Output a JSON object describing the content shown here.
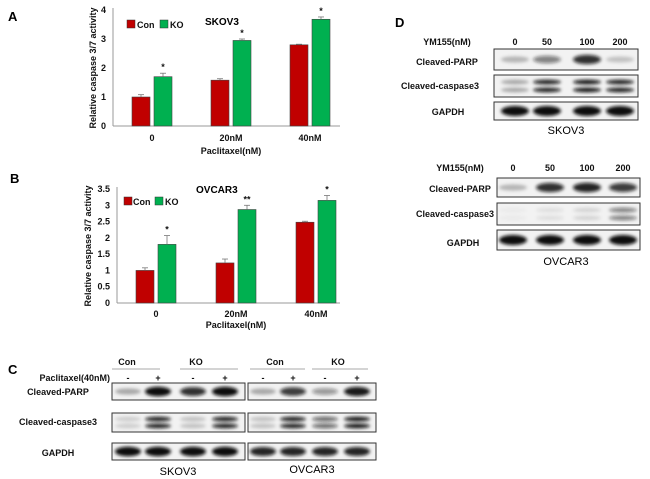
{
  "panels": {
    "a": "A",
    "b": "B",
    "c": "C",
    "d": "D"
  },
  "chart_data": [
    {
      "type": "bar",
      "title": "SKOV3",
      "xlabel": "Paclitaxel(nM)",
      "ylabel": "Relative caspase 3/7 activity",
      "categories": [
        "0",
        "20nM",
        "40nM"
      ],
      "ylim": [
        0,
        4
      ],
      "yticks": [
        "0",
        "1",
        "2",
        "3",
        "4"
      ],
      "series": [
        {
          "name": "Con",
          "color": "#c00000",
          "values": [
            1.0,
            1.58,
            2.8
          ],
          "errors": [
            0.08,
            0.05,
            0.02
          ]
        },
        {
          "name": "KO",
          "color": "#00b050",
          "values": [
            1.7,
            2.95,
            3.68
          ],
          "errors": [
            0.12,
            0.05,
            0.08
          ]
        }
      ],
      "significance": [
        "*",
        "*",
        "*"
      ],
      "legend": "top-left"
    },
    {
      "type": "bar",
      "title": "OVCAR3",
      "xlabel": "Paclitaxel(nM)",
      "ylabel": "Relative caspase 3/7 activity",
      "categories": [
        "0",
        "20nM",
        "40nM"
      ],
      "ylim": [
        0,
        3.5
      ],
      "yticks": [
        "0",
        "0.5",
        "1",
        "1.5",
        "2",
        "2.5",
        "3",
        "3.5"
      ],
      "series": [
        {
          "name": "Con",
          "color": "#c00000",
          "values": [
            1.0,
            1.23,
            2.48
          ],
          "errors": [
            0.08,
            0.12,
            0.03
          ]
        },
        {
          "name": "KO",
          "color": "#00b050",
          "values": [
            1.8,
            2.87,
            3.15
          ],
          "errors": [
            0.27,
            0.13,
            0.15
          ]
        }
      ],
      "significance": [
        "*",
        "**",
        "*"
      ],
      "legend": "top-left"
    }
  ],
  "panel_c": {
    "groups": [
      "Con",
      "KO",
      "Con",
      "KO"
    ],
    "treatment_label": "Paclitaxel(40nM)",
    "treatment_signs": [
      "-",
      "+",
      "-",
      "+",
      "-",
      "+",
      "-",
      "+"
    ],
    "rows": [
      "Cleaved-PARP",
      "Cleaved-caspase3",
      "GAPDH"
    ],
    "cell_lines": [
      "SKOV3",
      "OVCAR3"
    ],
    "band_intensity": {
      "SKOV3": [
        [
          0.3,
          1,
          0.85,
          1
        ],
        [
          0.15,
          0.9,
          0.2,
          0.9
        ],
        [
          1,
          1,
          1,
          1
        ]
      ],
      "OVCAR3": [
        [
          0.3,
          0.8,
          0.4,
          0.95
        ],
        [
          0.2,
          0.9,
          0.6,
          0.95
        ],
        [
          0.9,
          0.9,
          0.9,
          0.9
        ]
      ]
    }
  },
  "panel_d": {
    "dose_label": "YM155(nM)",
    "doses": [
      "0",
      "50",
      "100",
      "200"
    ],
    "rows": [
      "Cleaved-PARP",
      "Cleaved-caspase3",
      "GAPDH"
    ],
    "cell_lines": [
      "SKOV3",
      "OVCAR3"
    ],
    "band_intensity": {
      "SKOV3": [
        [
          0.25,
          0.5,
          0.85,
          0.2
        ],
        [
          0.3,
          0.9,
          0.95,
          0.9
        ],
        [
          1,
          1,
          1,
          1
        ]
      ],
      "OVCAR3": [
        [
          0.25,
          0.85,
          0.9,
          0.8
        ],
        [
          0.03,
          0.08,
          0.12,
          0.5
        ],
        [
          1,
          1,
          1,
          1
        ]
      ]
    }
  }
}
